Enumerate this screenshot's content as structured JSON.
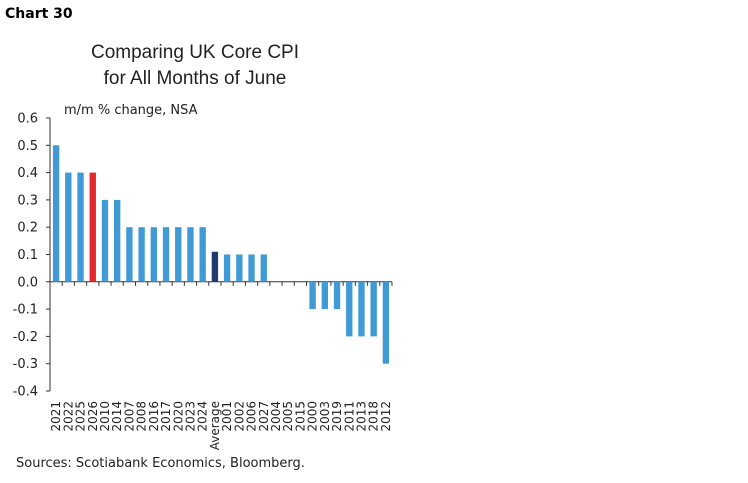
{
  "header": {
    "chart_number": "Chart 30"
  },
  "chart_data": {
    "type": "bar",
    "title_lines": [
      "Comparing UK Core CPI",
      "for All Months of June"
    ],
    "ylabel": "m/m % change, NSA",
    "xlabel": "",
    "ylim": [
      -0.4,
      0.6
    ],
    "yticks": [
      "0.6",
      "0.5",
      "0.4",
      "0.3",
      "0.2",
      "0.1",
      "0.0",
      "-0.1",
      "-0.2",
      "-0.3",
      "-0.4"
    ],
    "ytick_values": [
      0.6,
      0.5,
      0.4,
      0.3,
      0.2,
      0.1,
      0.0,
      -0.1,
      -0.2,
      -0.3,
      -0.4
    ],
    "grid": false,
    "categories": [
      "2021",
      "2022",
      "2025",
      "2026",
      "2010",
      "2014",
      "2007",
      "2008",
      "2016",
      "2017",
      "2020",
      "2023",
      "2024",
      "Average",
      "2001",
      "2002",
      "2006",
      "2027",
      "2004",
      "2005",
      "2015",
      "2000",
      "2003",
      "2019",
      "2011",
      "2013",
      "2018",
      "2012"
    ],
    "values": [
      0.5,
      0.4,
      0.4,
      0.4,
      0.3,
      0.3,
      0.2,
      0.2,
      0.2,
      0.2,
      0.2,
      0.2,
      0.2,
      0.11,
      0.1,
      0.1,
      0.1,
      0.1,
      0,
      0,
      0,
      -0.1,
      -0.1,
      -0.1,
      -0.2,
      -0.2,
      -0.2,
      -0.3
    ],
    "colors": {
      "default": "#3f9ad5",
      "highlight": "#e5262a",
      "average": "#1f3b6e"
    },
    "highlight_category": "2026",
    "average_category": "Average"
  },
  "footer": {
    "source": "Sources: Scotiabank Economics, Bloomberg."
  }
}
